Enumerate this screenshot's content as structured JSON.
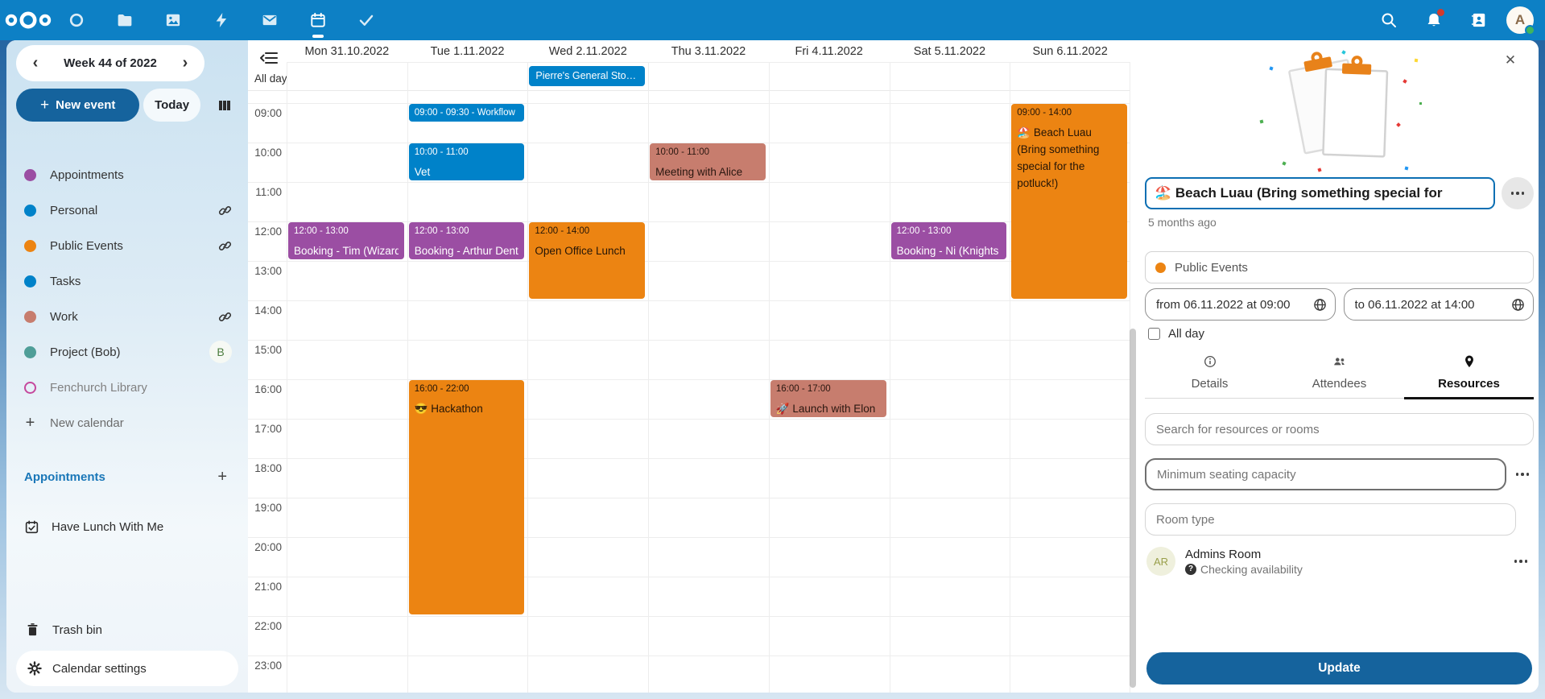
{
  "topbar": {
    "apps": [
      "dashboard",
      "files",
      "photos",
      "activity",
      "mail",
      "calendar",
      "tasks"
    ],
    "active_app": "calendar",
    "avatar_initial": "A"
  },
  "sidebar": {
    "week_title": "Week 44 of 2022",
    "new_event_label": "New event",
    "today_label": "Today",
    "calendars": [
      {
        "label": "Appointments",
        "color": "#9b4ea3",
        "trail": "none"
      },
      {
        "label": "Personal",
        "color": "#0082c9",
        "trail": "link"
      },
      {
        "label": "Public Events",
        "color": "#ec8412",
        "trail": "link"
      },
      {
        "label": "Tasks",
        "color": "#0082c9",
        "trail": "none"
      },
      {
        "label": "Work",
        "color": "#c77d6e",
        "trail": "link"
      },
      {
        "label": "Project (Bob)",
        "color": "#4f9e98",
        "trail": "avatar",
        "avatar": "B"
      },
      {
        "label": "Fenchurch Library",
        "color": "#c5489d",
        "outline": true,
        "muted": true,
        "trail": "none"
      }
    ],
    "new_calendar_label": "New calendar",
    "section_title": "Appointments",
    "appointment_item": "Have Lunch With Me",
    "trash_label": "Trash bin",
    "settings_label": "Calendar settings"
  },
  "calendar": {
    "days": [
      "Mon 31.10.2022",
      "Tue 1.11.2022",
      "Wed 2.11.2022",
      "Thu 3.11.2022",
      "Fri 4.11.2022",
      "Sat 5.11.2022",
      "Sun 6.11.2022"
    ],
    "allday_label": "All day",
    "hours": [
      "09:00",
      "10:00",
      "11:00",
      "12:00",
      "13:00",
      "14:00",
      "15:00",
      "16:00",
      "17:00",
      "18:00",
      "19:00",
      "20:00",
      "21:00",
      "22:00",
      "23:00"
    ],
    "allday_event": {
      "day": 2,
      "title": "Pierre's General Stor…",
      "cal": "personal"
    },
    "events": [
      {
        "day": 0,
        "start": 12,
        "end": 13,
        "time": "12:00 - 13:00",
        "title": "Booking - Tim (Wizard)",
        "cal": "appointments",
        "nowrap": true
      },
      {
        "day": 1,
        "start": 9,
        "end": 9.5,
        "time": "09:00 - 09:30 - Workflow",
        "title": "",
        "cal": "personal",
        "nowrap": true
      },
      {
        "day": 1,
        "start": 10,
        "end": 11,
        "time": "10:00 - 11:00",
        "title": "Vet",
        "cal": "personal",
        "nowrap": true
      },
      {
        "day": 1,
        "start": 12,
        "end": 13,
        "time": "12:00 - 13:00",
        "title": "Booking - Arthur Dent",
        "cal": "appointments",
        "nowrap": true
      },
      {
        "day": 1,
        "start": 16,
        "end": 22,
        "time": "16:00 - 22:00",
        "title": "😎 Hackathon",
        "cal": "public",
        "nowrap": true
      },
      {
        "day": 2,
        "start": 12,
        "end": 14,
        "time": "12:00 - 14:00",
        "title": "Open Office Lunch",
        "cal": "public",
        "nowrap": true
      },
      {
        "day": 3,
        "start": 10,
        "end": 11,
        "time": "10:00 - 11:00",
        "title": "Meeting with Alice",
        "cal": "work",
        "nowrap": true
      },
      {
        "day": 4,
        "start": 16,
        "end": 17,
        "time": "16:00 - 17:00",
        "title": "🚀 Launch with Elon",
        "cal": "work",
        "nowrap": true
      },
      {
        "day": 5,
        "start": 12,
        "end": 13,
        "time": "12:00 - 13:00",
        "title": "Booking - Ni (Knights",
        "cal": "appointments",
        "nowrap": true
      },
      {
        "day": 6,
        "start": 9,
        "end": 14,
        "time": "09:00 - 14:00",
        "title": "🏖️ Beach Luau (Bring something special for the potluck!)",
        "cal": "public",
        "nowrap": false
      }
    ],
    "colors": {
      "personal": {
        "bg": "#0082c9",
        "text": "#ffffff"
      },
      "appointments": {
        "bg": "#9b4ea3",
        "text": "#ffffff"
      },
      "public": {
        "bg": "#ec8412",
        "text": "#241507"
      },
      "work": {
        "bg": "#c77d6e",
        "text": "#2a1710"
      }
    }
  },
  "panel": {
    "title_value": "🏖️ Beach Luau (Bring something special for",
    "modified": "5 months ago",
    "category": {
      "label": "Public Events",
      "color": "#ec8412"
    },
    "from_value": "from 06.11.2022 at 09:00",
    "to_value": "to 06.11.2022 at 14:00",
    "allday_label": "All day",
    "tabs": [
      {
        "label": "Details",
        "icon": "info-icon",
        "active": false
      },
      {
        "label": "Attendees",
        "icon": "attendees-icon",
        "active": false
      },
      {
        "label": "Resources",
        "icon": "location-icon",
        "active": true
      }
    ],
    "search_placeholder": "Search for resources or rooms",
    "seating_placeholder": "Minimum seating capacity",
    "room_type_placeholder": "Room type",
    "resource": {
      "initials": "AR",
      "name": "Admins Room",
      "status": "Checking availability"
    },
    "update_label": "Update"
  }
}
